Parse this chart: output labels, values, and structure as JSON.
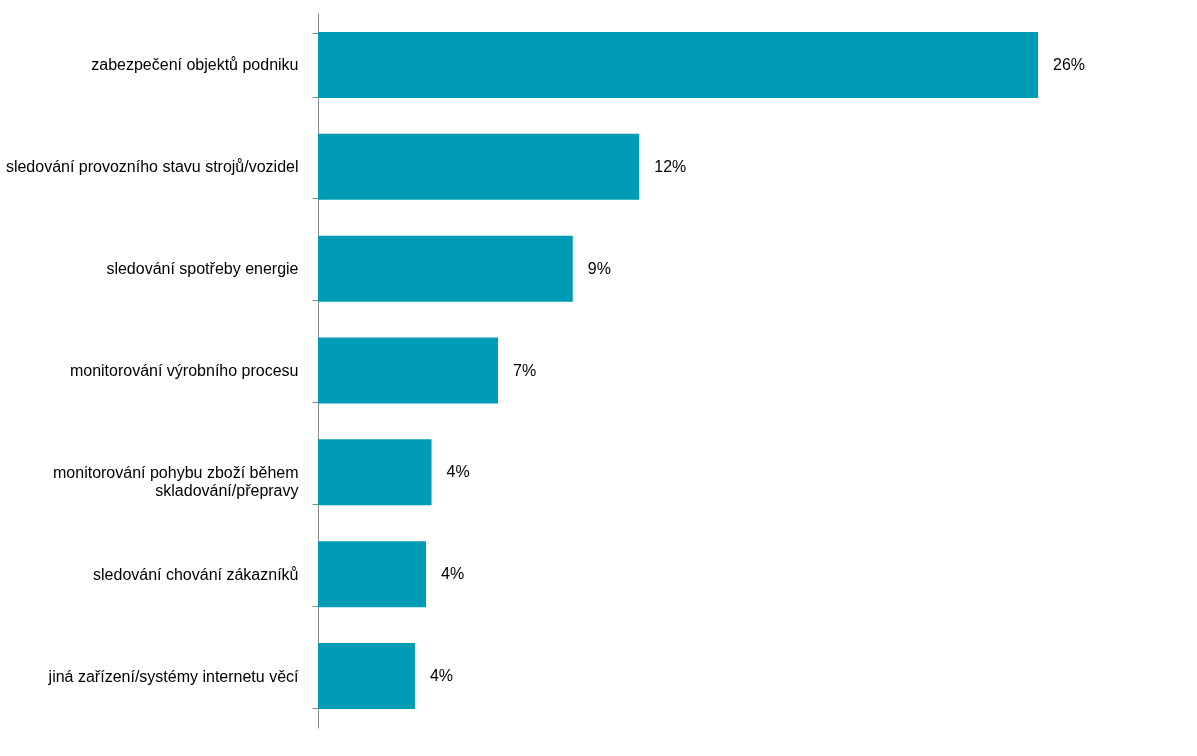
{
  "chart_data": {
    "type": "bar",
    "orientation": "horizontal",
    "categories": [
      "zabezpečení objektů podniku",
      "sledování provozního stavu strojů/vozidel",
      "sledování spotřeby energie",
      "monitorování výrobního procesu",
      "monitorování pohybu zboží během skladování/přepravy",
      "sledování chování zákazníků",
      "jiná zařízení/systémy internetu věcí"
    ],
    "values": [
      26,
      11.6,
      9.2,
      6.5,
      4.1,
      3.9,
      3.5
    ],
    "value_labels": [
      "26%",
      "12%",
      "9%",
      "7%",
      "4%",
      "4%",
      "4%"
    ],
    "color": "#009bb4"
  }
}
